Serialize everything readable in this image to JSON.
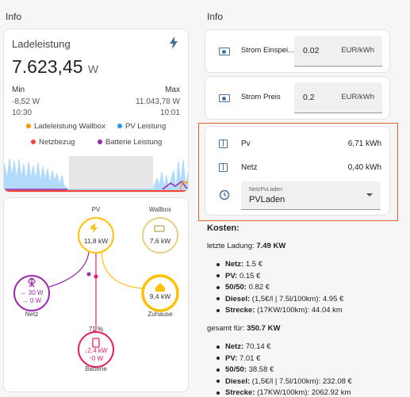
{
  "left": {
    "header": "Info",
    "power_card": {
      "title": "Ladeleistung",
      "value": "7.623,45",
      "unit": "W",
      "min_label": "Min",
      "max_label": "Max",
      "min_value": "-8,52 W",
      "max_value": "11.043,78 W",
      "min_time": "10:30",
      "max_time": "10:01",
      "legend": [
        {
          "name": "Ladeleistung Wallbox",
          "color": "#ff9800"
        },
        {
          "name": "PV Leistung",
          "color": "#2196f3"
        },
        {
          "name": "Netzbezug",
          "color": "#f44336"
        },
        {
          "name": "Batterie Leistung",
          "color": "#9c27b0"
        }
      ]
    },
    "flow": {
      "pv": {
        "label": "PV",
        "value": "11,8 kW"
      },
      "wallbox": {
        "label": "Wallbox",
        "value": "7,6 kW"
      },
      "grid": {
        "label": "Netz",
        "in": "← 30 W",
        "out": "→ 0 W"
      },
      "home": {
        "label": "Zuhause",
        "value": "9,4 kW"
      },
      "battery": {
        "label": "Batterie",
        "soc": "71 %",
        "in": "↓2,4 kW",
        "out": "↑0 W"
      }
    }
  },
  "right": {
    "header": "Info",
    "inputs": [
      {
        "label": "Strom Einspei...",
        "value": "0.02",
        "unit": "EUR/kWh"
      },
      {
        "label": "Strom Preis",
        "value": "0.2",
        "unit": "EUR/kWh"
      }
    ],
    "energy": [
      {
        "label": "Pv",
        "value": "6,71 kWh"
      },
      {
        "label": "Netz",
        "value": "0,40 kWh"
      }
    ],
    "select": {
      "label": "NetzPvLaden",
      "value": "PVLaden"
    },
    "markdown": {
      "title": "Kosten:",
      "sections": [
        {
          "intro": "letzte Ladung:",
          "amount": "7.49 KW",
          "items": [
            {
              "label": "Netz:",
              "text": "1.5 €"
            },
            {
              "label": "PV:",
              "text": "0.15 €"
            },
            {
              "label": "50/50:",
              "text": "0.82 €"
            },
            {
              "label": "Diesel:",
              "text": "(1,5€/l | 7.5l/100km): 4.95 €"
            },
            {
              "label": "Strecke:",
              "text": "(17KW/100km): 44.04 km"
            }
          ]
        },
        {
          "intro": "gesamt für:",
          "amount": "350.7 KW",
          "items": [
            {
              "label": "Netz:",
              "text": "70.14 €"
            },
            {
              "label": "PV:",
              "text": "7.01 €"
            },
            {
              "label": "50/50:",
              "text": "38.58 €"
            },
            {
              "label": "Diesel:",
              "text": "(1,5€/l | 7.5l/100km): 232.08 €"
            },
            {
              "label": "Strecke:",
              "text": "(17KW/100km): 2062.92 km"
            }
          ]
        }
      ]
    }
  }
}
